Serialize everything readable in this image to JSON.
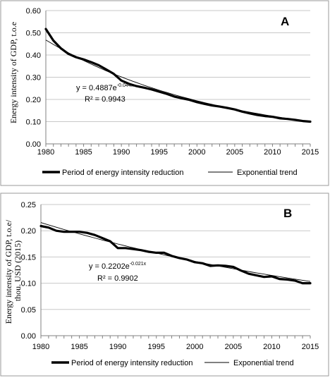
{
  "chart_data": [
    {
      "type": "line",
      "panel": "A",
      "ylabel": "Energy intensity of GDP, t.o.e",
      "xlim": [
        1980,
        2015
      ],
      "ylim": [
        0,
        0.6
      ],
      "x_ticks": [
        "1980",
        "1985",
        "1990",
        "1995",
        "2000",
        "2005",
        "2010",
        "2015"
      ],
      "y_ticks": [
        "0.00",
        "0.10",
        "0.20",
        "0.30",
        "0.40",
        "0.50",
        "0.60"
      ],
      "x": [
        1980,
        1981,
        1982,
        1983,
        1984,
        1985,
        1986,
        1987,
        1988,
        1989,
        1990,
        1991,
        1992,
        1993,
        1994,
        1995,
        1996,
        1997,
        1998,
        1999,
        2000,
        2001,
        2002,
        2003,
        2004,
        2005,
        2006,
        2007,
        2008,
        2009,
        2010,
        2011,
        2012,
        2013,
        2014,
        2015
      ],
      "series": [
        {
          "name": "Period of energy intensity reduction",
          "values": [
            0.517,
            0.465,
            0.43,
            0.405,
            0.39,
            0.38,
            0.368,
            0.354,
            0.335,
            0.315,
            0.285,
            0.27,
            0.26,
            0.253,
            0.245,
            0.235,
            0.225,
            0.213,
            0.205,
            0.198,
            0.188,
            0.18,
            0.173,
            0.168,
            0.162,
            0.155,
            0.145,
            0.137,
            0.13,
            0.125,
            0.122,
            0.115,
            0.112,
            0.108,
            0.103,
            0.1
          ]
        }
      ],
      "trend": {
        "name": "Exponential trend",
        "a": 0.4887,
        "b": -0.044,
        "equation": "y = 0.4887e",
        "exponent": "-0.044x",
        "r2": "R² = 0.9943"
      },
      "grid": "horizontal",
      "legend_position": "bottom"
    },
    {
      "type": "line",
      "panel": "B",
      "ylabel": "Energy intensity of GDP, t.o.e/ thou. USD (2015)",
      "ylabel_lines": [
        "Energy intensity of GDP, t.o.e/",
        "thou. USD (2015)"
      ],
      "xlim": [
        1980,
        2015
      ],
      "ylim": [
        0,
        0.25
      ],
      "x_ticks": [
        "1980",
        "1985",
        "1990",
        "1995",
        "2000",
        "2005",
        "2010",
        "2015"
      ],
      "y_ticks": [
        "0.00",
        "0.05",
        "0.10",
        "0.15",
        "0.20",
        "0.25"
      ],
      "x": [
        1980,
        1981,
        1982,
        1983,
        1984,
        1985,
        1986,
        1987,
        1988,
        1989,
        1990,
        1991,
        1992,
        1993,
        1994,
        1995,
        1996,
        1997,
        1998,
        1999,
        2000,
        2001,
        2002,
        2003,
        2004,
        2005,
        2006,
        2007,
        2008,
        2009,
        2010,
        2011,
        2012,
        2013,
        2014,
        2015
      ],
      "series": [
        {
          "name": "Period of energy intensity reduction",
          "values": [
            0.209,
            0.206,
            0.2,
            0.198,
            0.198,
            0.198,
            0.196,
            0.192,
            0.186,
            0.18,
            0.167,
            0.167,
            0.165,
            0.163,
            0.16,
            0.158,
            0.158,
            0.152,
            0.148,
            0.145,
            0.14,
            0.138,
            0.133,
            0.134,
            0.133,
            0.131,
            0.124,
            0.118,
            0.115,
            0.112,
            0.113,
            0.108,
            0.107,
            0.105,
            0.1,
            0.1
          ]
        }
      ],
      "trend": {
        "name": "Exponential trend",
        "a": 0.2202,
        "b": -0.021,
        "equation": "y = 0.2202e",
        "exponent": "-0.021x",
        "r2": "R² = 0.9902"
      },
      "grid": "horizontal",
      "legend_position": "bottom"
    }
  ]
}
